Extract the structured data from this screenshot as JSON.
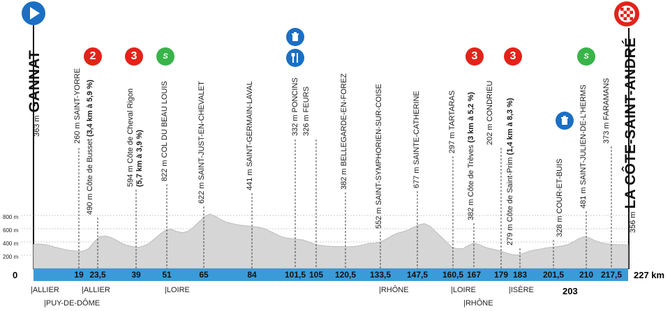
{
  "start": {
    "altitude": "363 m",
    "name": "GANNAT"
  },
  "finish": {
    "altitude": "356 m",
    "name": "LA CÔTE-SAINT-ANDRÉ"
  },
  "total_distance": "227 km",
  "zero_label": "0",
  "colors": {
    "profile_fill": "#d4d4d4",
    "band": "#3a9bd8",
    "cat": "#e2231a",
    "sprint": "#38b449",
    "feed": "#1b6fc4",
    "start_marker": "#1b6fc4"
  },
  "icons": {
    "start": "play-arrow-icon",
    "finish": "checkered-flag-icon",
    "sprint": "green-sprint-icon",
    "feed": "feed-zone-icon"
  },
  "axis_labels": [
    "800 m",
    "600 m",
    "400 m",
    "200 m"
  ],
  "waypoints": [
    {
      "km": "19",
      "label": "260 m SAINT-YORRE",
      "bold": ""
    },
    {
      "km": "23,5",
      "label": "490 m Côte de Busset ",
      "bold": "(3,4 km à 5,9 %)",
      "category": "2"
    },
    {
      "km": "39",
      "label": "594 m Côte de Cheval Rigon",
      "label2": "(5,7 km à 3,9 %)",
      "category": "3"
    },
    {
      "km": "51",
      "label": "822 m COL DU BEAU LOUIS",
      "sprint": "S"
    },
    {
      "km": "65",
      "label": "622 m SAINT-JUST-EN-CHEVALET"
    },
    {
      "km": "84",
      "label": "441 m SAINT-GERMAIN-LAVAL"
    },
    {
      "km": "101,5",
      "label": "332 m PONCINS",
      "feed": true
    },
    {
      "km": "105",
      "label": "326 m FEURS"
    },
    {
      "km": "120,5",
      "label": "382 m BELLEGARDE-EN-FOREZ"
    },
    {
      "km": "133,5",
      "label": "552 m SAINT-SYMPHORIEN-SUR-COISE"
    },
    {
      "km": "147,5",
      "label": "677 m SAINTE-CATHERINE"
    },
    {
      "km": "160,5",
      "label": "297 m TARTARAS"
    },
    {
      "km": "167",
      "label": "382 m Côte de Trèves ",
      "bold": "(3 km à 5,2 %)",
      "category": "3"
    },
    {
      "km": "179",
      "label": "202 m CONDRIEU"
    },
    {
      "km": "183",
      "label": "279 m Côte de Saint-Prim ",
      "bold": "(1,4 km à 8,3 %)",
      "category": "3"
    },
    {
      "km": "201,5",
      "label": "328 m COUR-ET-BUIS"
    },
    {
      "km": "203",
      "feed": true
    },
    {
      "km": "210",
      "label": "481 m SAINT-JULIEN-DE-L'HERMS",
      "sprint": "S"
    },
    {
      "km": "217,5",
      "label": "373 m FARAMANS"
    }
  ],
  "regions": [
    {
      "text": "|ALLIER"
    },
    {
      "text": "|PUY-DE-DÔME"
    },
    {
      "text": "|ALLIER"
    },
    {
      "text": "|LOIRE"
    },
    {
      "text": "|RHÔNE"
    },
    {
      "text": "|LOIRE"
    },
    {
      "text": "|RHÔNE"
    },
    {
      "text": "|ISÈRE"
    }
  ],
  "profile_elevations_m": [
    363,
    370,
    360,
    345,
    320,
    300,
    280,
    270,
    262,
    260,
    300,
    400,
    480,
    490,
    470,
    430,
    380,
    350,
    330,
    320,
    340,
    380,
    450,
    520,
    580,
    594,
    560,
    540,
    560,
    620,
    700,
    780,
    822,
    790,
    740,
    700,
    680,
    660,
    650,
    640,
    630,
    622,
    600,
    560,
    520,
    480,
    460,
    450,
    441,
    430,
    400,
    370,
    350,
    340,
    335,
    332,
    330,
    326,
    330,
    340,
    360,
    380,
    382,
    400,
    440,
    490,
    530,
    552,
    580,
    620,
    660,
    677,
    640,
    560,
    480,
    400,
    320,
    297,
    300,
    350,
    382,
    360,
    320,
    300,
    280,
    260,
    230,
    210,
    202,
    230,
    260,
    279,
    290,
    310,
    320,
    328,
    340,
    360,
    400,
    450,
    481,
    460,
    420,
    390,
    373,
    365,
    360,
    358,
    356
  ]
}
